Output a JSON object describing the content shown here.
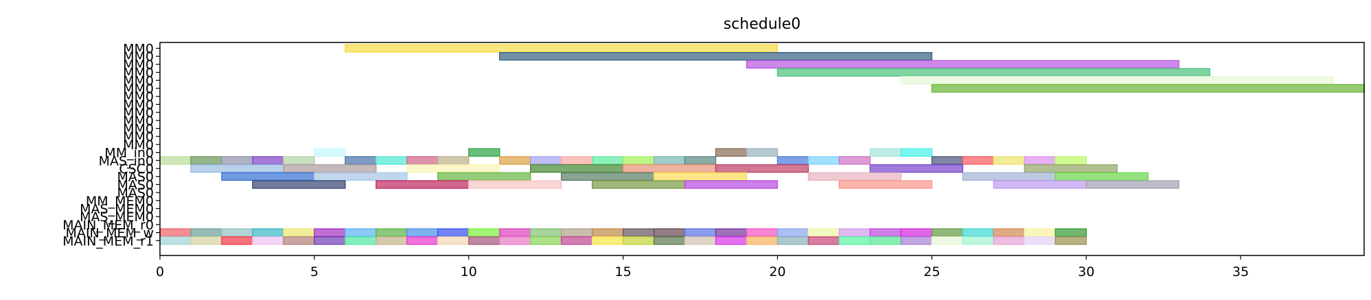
{
  "chart_data": {
    "type": "gantt",
    "title": "schedule0",
    "xlabel": "",
    "ylabel": "",
    "xlim": [
      0,
      39
    ],
    "xticks": [
      0,
      5,
      10,
      15,
      20,
      25,
      30,
      35
    ],
    "grid": false,
    "rows": [
      "MM0",
      "MM0",
      "MM0",
      "MM0",
      "MM0",
      "MM0",
      "MM0",
      "MM0",
      "MM0",
      "MM0",
      "MM0",
      "MM0",
      "MM0",
      "MM_in0",
      "MAS_in0",
      "CSC0",
      "MAS0",
      "MAS0",
      "MAS0",
      "MM_MEM0",
      "MAS_MEM0",
      "MAS_MEM0",
      "MAIN_MEM_r0",
      "MAIN_MEM_w",
      "MAIN_MEM_r1"
    ],
    "bars": [
      {
        "row": 0,
        "start": 6,
        "end": 20,
        "color": "#f7dc4a"
      },
      {
        "row": 1,
        "start": 11,
        "end": 25,
        "color": "#3b6482"
      },
      {
        "row": 2,
        "start": 19,
        "end": 33,
        "color": "#b85ce0"
      },
      {
        "row": 3,
        "start": 20,
        "end": 34,
        "color": "#4fc27f"
      },
      {
        "row": 4,
        "start": 24,
        "end": 38,
        "color": "#e8f8d8"
      },
      {
        "row": 5,
        "start": 25,
        "end": 39,
        "color": "#6cb83a"
      },
      {
        "row": 13,
        "start": 5,
        "end": 6,
        "color": "#c6fafc"
      },
      {
        "row": 13,
        "start": 10,
        "end": 11,
        "color": "#2ea84a"
      },
      {
        "row": 13,
        "start": 18,
        "end": 19,
        "color": "#8a7058"
      },
      {
        "row": 13,
        "start": 19,
        "end": 20,
        "color": "#9ab4be"
      },
      {
        "row": 13,
        "start": 23,
        "end": 24,
        "color": "#a8e4dc"
      },
      {
        "row": 13,
        "start": 24,
        "end": 25,
        "color": "#4af2e8"
      },
      {
        "row": 14,
        "start": 0,
        "end": 1,
        "color": "#bddc9c"
      },
      {
        "row": 14,
        "start": 1,
        "end": 2,
        "color": "#6e9a5a"
      },
      {
        "row": 14,
        "start": 2,
        "end": 3,
        "color": "#9494ae"
      },
      {
        "row": 14,
        "start": 3,
        "end": 4,
        "color": "#8448c8"
      },
      {
        "row": 14,
        "start": 4,
        "end": 5,
        "color": "#b4d4a8"
      },
      {
        "row": 14,
        "start": 6,
        "end": 7,
        "color": "#4e74ac"
      },
      {
        "row": 14,
        "start": 7,
        "end": 8,
        "color": "#56e8d4"
      },
      {
        "row": 14,
        "start": 8,
        "end": 9,
        "color": "#d06a88"
      },
      {
        "row": 14,
        "start": 9,
        "end": 10,
        "color": "#c0b48e"
      },
      {
        "row": 14,
        "start": 11,
        "end": 12,
        "color": "#dca448"
      },
      {
        "row": 14,
        "start": 12,
        "end": 13,
        "color": "#a8a4f4"
      },
      {
        "row": 14,
        "start": 13,
        "end": 14,
        "color": "#fcaaa4"
      },
      {
        "row": 14,
        "start": 14,
        "end": 15,
        "color": "#62eaa4"
      },
      {
        "row": 14,
        "start": 15,
        "end": 16,
        "color": "#a6f05e"
      },
      {
        "row": 14,
        "start": 16,
        "end": 17,
        "color": "#7cbab4"
      },
      {
        "row": 14,
        "start": 17,
        "end": 18,
        "color": "#5e8a84"
      },
      {
        "row": 14,
        "start": 20,
        "end": 21,
        "color": "#4e7edc"
      },
      {
        "row": 14,
        "start": 21,
        "end": 22,
        "color": "#7ed4fc"
      },
      {
        "row": 14,
        "start": 22,
        "end": 23,
        "color": "#d076c8"
      },
      {
        "row": 14,
        "start": 25,
        "end": 26,
        "color": "#525a80"
      },
      {
        "row": 14,
        "start": 26,
        "end": 27,
        "color": "#fa5e64"
      },
      {
        "row": 14,
        "start": 27,
        "end": 28,
        "color": "#ece46c"
      },
      {
        "row": 14,
        "start": 28,
        "end": 29,
        "color": "#dc94ec"
      },
      {
        "row": 14,
        "start": 29,
        "end": 30,
        "color": "#bef868"
      },
      {
        "row": 15,
        "start": 1,
        "end": 4,
        "color": "#9cbee2"
      },
      {
        "row": 15,
        "start": 4,
        "end": 7,
        "color": "#ae9ea0"
      },
      {
        "row": 15,
        "start": 8,
        "end": 11,
        "color": "#f8f4b4"
      },
      {
        "row": 15,
        "start": 12,
        "end": 15,
        "color": "#4a8a38"
      },
      {
        "row": 15,
        "start": 15,
        "end": 18,
        "color": "#e89478"
      },
      {
        "row": 15,
        "start": 18,
        "end": 21,
        "color": "#c04468"
      },
      {
        "row": 15,
        "start": 23,
        "end": 26,
        "color": "#7a4ad0"
      },
      {
        "row": 15,
        "start": 28,
        "end": 31,
        "color": "#94a868"
      },
      {
        "row": 16,
        "start": 2,
        "end": 5,
        "color": "#3a74d4"
      },
      {
        "row": 16,
        "start": 5,
        "end": 8,
        "color": "#a8c8e6"
      },
      {
        "row": 16,
        "start": 9,
        "end": 12,
        "color": "#6cb848"
      },
      {
        "row": 16,
        "start": 13,
        "end": 16,
        "color": "#5e8068"
      },
      {
        "row": 16,
        "start": 16,
        "end": 19,
        "color": "#f8dc5c"
      },
      {
        "row": 16,
        "start": 21,
        "end": 24,
        "color": "#e8b4c0"
      },
      {
        "row": 16,
        "start": 26,
        "end": 29,
        "color": "#a4b4d4"
      },
      {
        "row": 16,
        "start": 29,
        "end": 32,
        "color": "#6cd84e"
      },
      {
        "row": 17,
        "start": 3,
        "end": 6,
        "color": "#3a4a74"
      },
      {
        "row": 17,
        "start": 7,
        "end": 10,
        "color": "#c02c64"
      },
      {
        "row": 17,
        "start": 10,
        "end": 13,
        "color": "#f4c6c4"
      },
      {
        "row": 17,
        "start": 14,
        "end": 17,
        "color": "#7c9c48"
      },
      {
        "row": 17,
        "start": 17,
        "end": 20,
        "color": "#b84ce0"
      },
      {
        "row": 17,
        "start": 22,
        "end": 25,
        "color": "#fa988e"
      },
      {
        "row": 17,
        "start": 27,
        "end": 30,
        "color": "#c09cf0"
      },
      {
        "row": 17,
        "start": 30,
        "end": 33,
        "color": "#a4a4b4"
      },
      {
        "row": 23,
        "start": 0,
        "end": 1,
        "color": "#f0646c"
      },
      {
        "row": 23,
        "start": 1,
        "end": 2,
        "color": "#6ea498"
      },
      {
        "row": 23,
        "start": 2,
        "end": 3,
        "color": "#94c4c4"
      },
      {
        "row": 23,
        "start": 3,
        "end": 4,
        "color": "#3eb8c4"
      },
      {
        "row": 23,
        "start": 4,
        "end": 5,
        "color": "#ece674"
      },
      {
        "row": 23,
        "start": 5,
        "end": 6,
        "color": "#a638c4"
      },
      {
        "row": 23,
        "start": 6,
        "end": 7,
        "color": "#5eb4f4"
      },
      {
        "row": 23,
        "start": 7,
        "end": 8,
        "color": "#5eb44c"
      },
      {
        "row": 23,
        "start": 8,
        "end": 9,
        "color": "#4e94ec"
      },
      {
        "row": 23,
        "start": 9,
        "end": 10,
        "color": "#3e54f0"
      },
      {
        "row": 23,
        "start": 10,
        "end": 11,
        "color": "#7ef040"
      },
      {
        "row": 23,
        "start": 11,
        "end": 12,
        "color": "#de44bc"
      },
      {
        "row": 23,
        "start": 12,
        "end": 13,
        "color": "#84c474"
      },
      {
        "row": 23,
        "start": 13,
        "end": 14,
        "color": "#b4a48c"
      },
      {
        "row": 23,
        "start": 14,
        "end": 15,
        "color": "#c08c4c"
      },
      {
        "row": 23,
        "start": 15,
        "end": 16,
        "color": "#6a5a64"
      },
      {
        "row": 23,
        "start": 16,
        "end": 17,
        "color": "#6a4c54"
      },
      {
        "row": 23,
        "start": 17,
        "end": 18,
        "color": "#5e74e4"
      },
      {
        "row": 23,
        "start": 18,
        "end": 19,
        "color": "#7a3aa0"
      },
      {
        "row": 23,
        "start": 19,
        "end": 20,
        "color": "#f454c4"
      },
      {
        "row": 23,
        "start": 20,
        "end": 21,
        "color": "#8ea8f0"
      },
      {
        "row": 23,
        "start": 21,
        "end": 22,
        "color": "#eef8a8"
      },
      {
        "row": 23,
        "start": 22,
        "end": 23,
        "color": "#d49cf0"
      },
      {
        "row": 23,
        "start": 23,
        "end": 24,
        "color": "#c04ce0"
      },
      {
        "row": 23,
        "start": 24,
        "end": 25,
        "color": "#d42ce0"
      },
      {
        "row": 23,
        "start": 25,
        "end": 26,
        "color": "#6a9c48"
      },
      {
        "row": 23,
        "start": 26,
        "end": 27,
        "color": "#3ed8d4"
      },
      {
        "row": 23,
        "start": 27,
        "end": 28,
        "color": "#d48a58"
      },
      {
        "row": 23,
        "start": 28,
        "end": 29,
        "color": "#f8f4a4"
      },
      {
        "row": 23,
        "start": 29,
        "end": 30,
        "color": "#3a9c3a"
      },
      {
        "row": 24,
        "start": 0,
        "end": 1,
        "color": "#a4d4d8"
      },
      {
        "row": 24,
        "start": 1,
        "end": 2,
        "color": "#d4d4a4"
      },
      {
        "row": 24,
        "start": 2,
        "end": 3,
        "color": "#f43c4c"
      },
      {
        "row": 24,
        "start": 3,
        "end": 4,
        "color": "#f0c4f0"
      },
      {
        "row": 24,
        "start": 4,
        "end": 5,
        "color": "#b4847c"
      },
      {
        "row": 24,
        "start": 5,
        "end": 6,
        "color": "#7444b4"
      },
      {
        "row": 24,
        "start": 6,
        "end": 7,
        "color": "#54e8a4"
      },
      {
        "row": 24,
        "start": 7,
        "end": 8,
        "color": "#c4b48c"
      },
      {
        "row": 24,
        "start": 8,
        "end": 9,
        "color": "#e83ccc"
      },
      {
        "row": 24,
        "start": 9,
        "end": 10,
        "color": "#f4d8b4"
      },
      {
        "row": 24,
        "start": 10,
        "end": 11,
        "color": "#a45c7c"
      },
      {
        "row": 24,
        "start": 11,
        "end": 12,
        "color": "#e87cc4"
      },
      {
        "row": 24,
        "start": 12,
        "end": 13,
        "color": "#8cd45c"
      },
      {
        "row": 24,
        "start": 13,
        "end": 14,
        "color": "#c04c94"
      },
      {
        "row": 24,
        "start": 14,
        "end": 15,
        "color": "#f4e84c"
      },
      {
        "row": 24,
        "start": 15,
        "end": 16,
        "color": "#c4d43c"
      },
      {
        "row": 24,
        "start": 16,
        "end": 17,
        "color": "#5e7c54"
      },
      {
        "row": 24,
        "start": 17,
        "end": 18,
        "color": "#d4c4b4"
      },
      {
        "row": 24,
        "start": 18,
        "end": 19,
        "color": "#d83ce8"
      },
      {
        "row": 24,
        "start": 19,
        "end": 20,
        "color": "#f4b464"
      },
      {
        "row": 24,
        "start": 20,
        "end": 21,
        "color": "#8cb4bc"
      },
      {
        "row": 24,
        "start": 21,
        "end": 22,
        "color": "#c84c7c"
      },
      {
        "row": 24,
        "start": 22,
        "end": 23,
        "color": "#5cf4a4"
      },
      {
        "row": 24,
        "start": 23,
        "end": 24,
        "color": "#5ce894"
      },
      {
        "row": 24,
        "start": 24,
        "end": 25,
        "color": "#a884d4"
      },
      {
        "row": 24,
        "start": 25,
        "end": 26,
        "color": "#e8f8d8"
      },
      {
        "row": 24,
        "start": 26,
        "end": 27,
        "color": "#a4f4d4"
      },
      {
        "row": 24,
        "start": 27,
        "end": 28,
        "color": "#e4a4d4"
      },
      {
        "row": 24,
        "start": 28,
        "end": 29,
        "color": "#e4d4f4"
      },
      {
        "row": 24,
        "start": 29,
        "end": 30,
        "color": "#9c9454"
      }
    ]
  }
}
